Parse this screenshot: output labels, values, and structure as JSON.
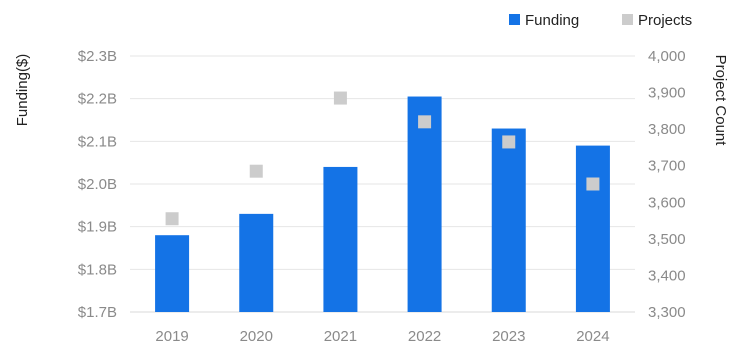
{
  "chart_data": {
    "type": "bar",
    "categories": [
      "2019",
      "2020",
      "2021",
      "2022",
      "2023",
      "2024"
    ],
    "series": [
      {
        "name": "Funding",
        "type": "bar",
        "axis": "left",
        "color": "#1473e6",
        "values": [
          1.88,
          1.93,
          2.04,
          2.205,
          2.13,
          2.09
        ]
      },
      {
        "name": "Projects",
        "type": "scatter",
        "marker": "square",
        "axis": "right",
        "color": "#cccccc",
        "values": [
          3555,
          3685,
          3885,
          3820,
          3765,
          3650
        ]
      }
    ],
    "ylabel": "Funding($)",
    "ylabel_right": "Project Count",
    "ylim": [
      1.7,
      2.3
    ],
    "ylim_right": [
      3300,
      4000
    ],
    "yticks": [
      "$1.7B",
      "$1.8B",
      "$1.9B",
      "$2.0B",
      "$2.1B",
      "$2.2B",
      "$2.3B"
    ],
    "yticks_right": [
      "3,300",
      "3,400",
      "3,500",
      "3,600",
      "3,700",
      "3,800",
      "3,900",
      "4,000"
    ],
    "legend": [
      "Funding",
      "Projects"
    ],
    "legend_position": "top-right",
    "grid": true
  }
}
